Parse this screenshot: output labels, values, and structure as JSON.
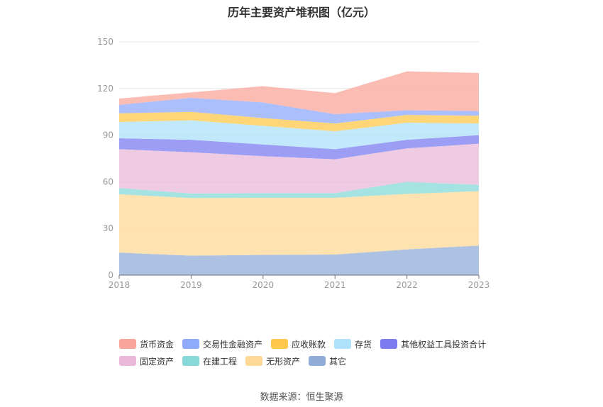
{
  "chart_data": {
    "type": "area",
    "stacked": true,
    "title": "历年主要资产堆积图（亿元）",
    "x": [
      "2018",
      "2019",
      "2020",
      "2021",
      "2022",
      "2023"
    ],
    "ylim": [
      0,
      150
    ],
    "yticks": [
      0,
      30,
      60,
      90,
      120,
      150
    ],
    "grid": true,
    "legend_position": "bottom",
    "series": [
      {
        "name": "其它",
        "color": "#92acd9",
        "values": [
          14.5,
          12.5,
          13,
          13.2,
          16.5,
          19
        ]
      },
      {
        "name": "无形资产",
        "color": "#fed995",
        "values": [
          37.5,
          37,
          36.7,
          36.5,
          35.7,
          35
        ]
      },
      {
        "name": "在建工程",
        "color": "#86d9d8",
        "values": [
          4,
          3,
          3,
          3,
          7.8,
          4
        ]
      },
      {
        "name": "固定资产",
        "color": "#eab9d9",
        "values": [
          25,
          26.5,
          23.8,
          21.8,
          21.5,
          26.5
        ]
      },
      {
        "name": "其他权益工具投资合计",
        "color": "#7b7cf0",
        "values": [
          7,
          8,
          7.5,
          6.5,
          5.5,
          5.5
        ]
      },
      {
        "name": "存货",
        "color": "#aee2fa",
        "values": [
          10.5,
          12.5,
          12,
          11.5,
          11,
          7.5
        ]
      },
      {
        "name": "应收账款",
        "color": "#fdc84b",
        "values": [
          5.5,
          5.5,
          5,
          5,
          5,
          5
        ]
      },
      {
        "name": "交易性金融资产",
        "color": "#8fa9fb",
        "values": [
          5.5,
          9,
          10,
          6,
          3,
          3
        ]
      },
      {
        "name": "货币资金",
        "color": "#f9a59b",
        "values": [
          4,
          3.5,
          10.5,
          13.5,
          25,
          24.5
        ]
      }
    ]
  },
  "legend_rows": [
    [
      {
        "name": "货币资金",
        "color": "#f9a59b"
      },
      {
        "name": "交易性金融资产",
        "color": "#8fa9fb"
      },
      {
        "name": "应收账款",
        "color": "#fdc84b"
      },
      {
        "name": "存货",
        "color": "#aee2fa"
      },
      {
        "name": "其他权益工具投资合计",
        "color": "#7b7cf0"
      }
    ],
    [
      {
        "name": "固定资产",
        "color": "#eab9d9"
      },
      {
        "name": "在建工程",
        "color": "#86d9d8"
      },
      {
        "name": "无形资产",
        "color": "#fed995"
      },
      {
        "name": "其它",
        "color": "#92acd9"
      }
    ]
  ],
  "source_text": "数据来源：恒生聚源"
}
